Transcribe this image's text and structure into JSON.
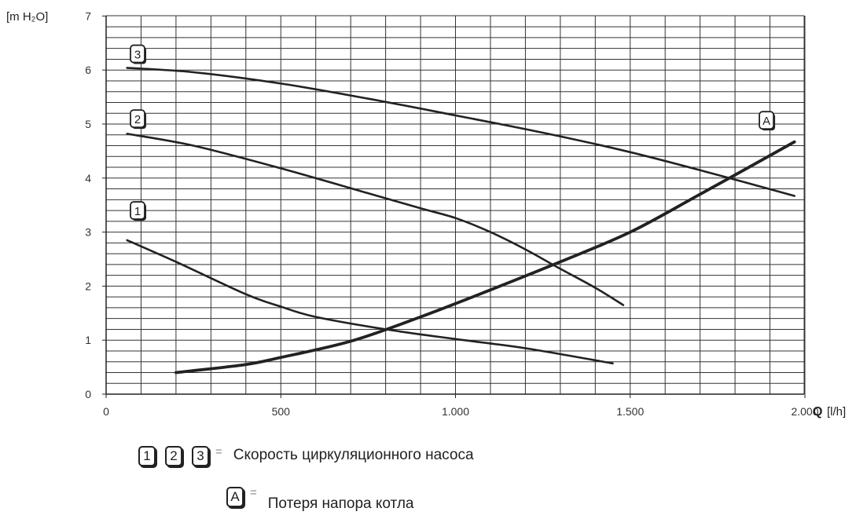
{
  "chart_data": {
    "type": "line",
    "xlim": [
      0,
      2000
    ],
    "ylim": [
      0,
      7
    ],
    "y_unit_label": "[m H₂O]",
    "x_axis_symbol": "Q",
    "x_unit_label": "[l/h]",
    "x_ticks": [
      {
        "value": 0,
        "label": "0"
      },
      {
        "value": 500,
        "label": "500"
      },
      {
        "value": 1000,
        "label": "1.000"
      },
      {
        "value": 1500,
        "label": "1.500"
      },
      {
        "value": 2000,
        "label": "2.000"
      }
    ],
    "y_ticks": [
      {
        "value": 0,
        "label": "0"
      },
      {
        "value": 1,
        "label": "1"
      },
      {
        "value": 2,
        "label": "2"
      },
      {
        "value": 3,
        "label": "3"
      },
      {
        "value": 4,
        "label": "4"
      },
      {
        "value": 5,
        "label": "5"
      },
      {
        "value": 6,
        "label": "6"
      },
      {
        "value": 7,
        "label": "7"
      }
    ],
    "grid": true,
    "series": [
      {
        "name": "3",
        "color": "#222222",
        "points": [
          [
            60,
            6.04
          ],
          [
            250,
            5.96
          ],
          [
            500,
            5.75
          ],
          [
            750,
            5.47
          ],
          [
            1000,
            5.16
          ],
          [
            1250,
            4.84
          ],
          [
            1500,
            4.48
          ],
          [
            1750,
            4.06
          ],
          [
            1970,
            3.67
          ]
        ]
      },
      {
        "name": "2",
        "color": "#222222",
        "points": [
          [
            60,
            4.82
          ],
          [
            250,
            4.6
          ],
          [
            500,
            4.18
          ],
          [
            750,
            3.72
          ],
          [
            900,
            3.44
          ],
          [
            1000,
            3.26
          ],
          [
            1100,
            3.0
          ],
          [
            1200,
            2.68
          ],
          [
            1300,
            2.32
          ],
          [
            1400,
            1.97
          ],
          [
            1480,
            1.65
          ]
        ]
      },
      {
        "name": "1",
        "color": "#222222",
        "points": [
          [
            60,
            2.85
          ],
          [
            200,
            2.45
          ],
          [
            400,
            1.85
          ],
          [
            500,
            1.62
          ],
          [
            600,
            1.43
          ],
          [
            800,
            1.2
          ],
          [
            1000,
            1.02
          ],
          [
            1200,
            0.85
          ],
          [
            1450,
            0.57
          ]
        ]
      },
      {
        "name": "A",
        "color": "#222222",
        "points": [
          [
            200,
            0.4
          ],
          [
            400,
            0.55
          ],
          [
            500,
            0.68
          ],
          [
            700,
            0.98
          ],
          [
            900,
            1.43
          ],
          [
            1100,
            1.93
          ],
          [
            1300,
            2.45
          ],
          [
            1500,
            3.0
          ],
          [
            1700,
            3.7
          ],
          [
            1970,
            4.67
          ]
        ]
      }
    ],
    "series_labels": [
      {
        "text": "3",
        "x": 90,
        "y": 6.3
      },
      {
        "text": "2",
        "x": 90,
        "y": 5.1
      },
      {
        "text": "1",
        "x": 90,
        "y": 3.4
      },
      {
        "text": "A",
        "x": 1890,
        "y": 5.07
      }
    ]
  },
  "legend": [
    {
      "badges": [
        "1",
        "2",
        "3"
      ],
      "equals": "=",
      "text": "Скорость циркуляционного насоса"
    },
    {
      "badges": [
        "A"
      ],
      "equals": "=",
      "text": "Потеря напора котла"
    }
  ]
}
